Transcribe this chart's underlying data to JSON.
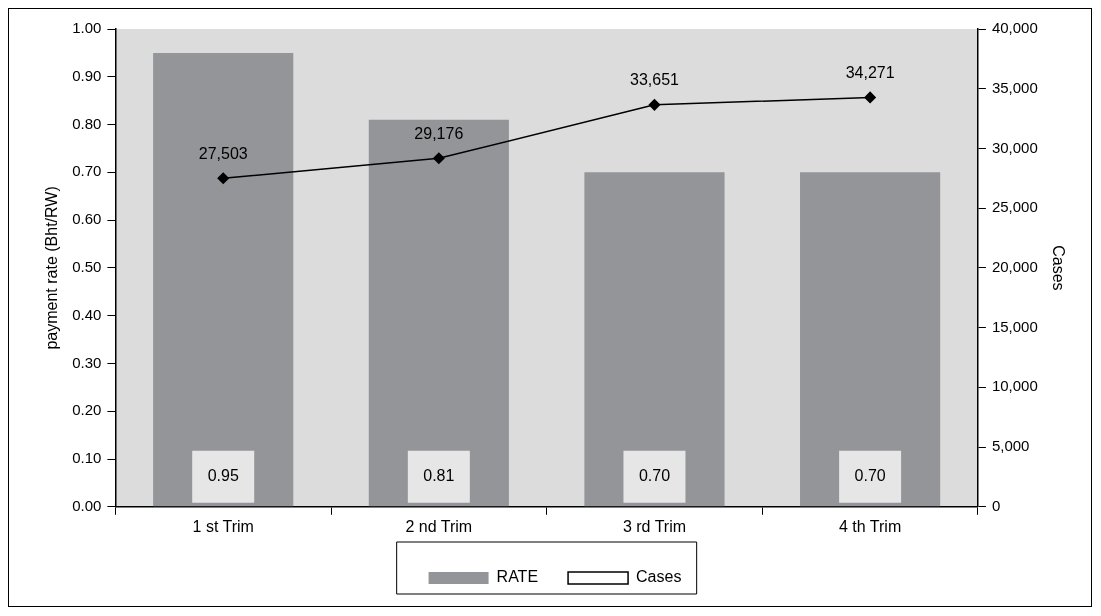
{
  "chart_data": {
    "type": "bar",
    "categories": [
      "1 st Trim",
      "2 nd Trim",
      "3 rd Trim",
      "4 th Trim"
    ],
    "series": [
      {
        "name": "RATE",
        "color": "#939598",
        "values": [
          0.95,
          0.81,
          0.7,
          0.7
        ],
        "value_labels": [
          "0.95",
          "0.81",
          "0.70",
          "0.70"
        ]
      },
      {
        "name": "Cases",
        "type": "line",
        "axis": "y2",
        "color": "#000000",
        "values": [
          27503,
          29176,
          33651,
          34271
        ],
        "value_labels": [
          "27,503",
          "29,176",
          "33,651",
          "34,271"
        ]
      }
    ],
    "ylabel": "payment rate (Bht/RW)",
    "y2label": "Cases",
    "ylim": [
      0,
      1
    ],
    "yticks": [
      {
        "value": 0,
        "label": "0.00"
      },
      {
        "value": 0.1,
        "label": "0.10"
      },
      {
        "value": 0.2,
        "label": "0.20"
      },
      {
        "value": 0.3,
        "label": "0.30"
      },
      {
        "value": 0.4,
        "label": "0.40"
      },
      {
        "value": 0.5,
        "label": "0.50"
      },
      {
        "value": 0.6,
        "label": "0.60"
      },
      {
        "value": 0.7,
        "label": "0.70"
      },
      {
        "value": 0.8,
        "label": "0.80"
      },
      {
        "value": 0.9,
        "label": "0.90"
      },
      {
        "value": 1,
        "label": "1.00"
      }
    ],
    "y2lim": [
      0,
      40000
    ],
    "y2ticks": [
      0,
      {
        "value": 5000,
        "label": "5,000"
      },
      {
        "value": 10000,
        "label": "10,000"
      },
      {
        "value": 15000,
        "label": "15,000"
      },
      {
        "value": 20000,
        "label": "20,000"
      },
      {
        "value": 25000,
        "label": "25,000"
      },
      {
        "value": 30000,
        "label": "30,000"
      },
      {
        "value": 35000,
        "label": "35,000"
      },
      {
        "value": 40000,
        "label": "40,000"
      }
    ],
    "grid": false,
    "legend": "bottom",
    "marker": "diamond",
    "line_style": "solid"
  }
}
